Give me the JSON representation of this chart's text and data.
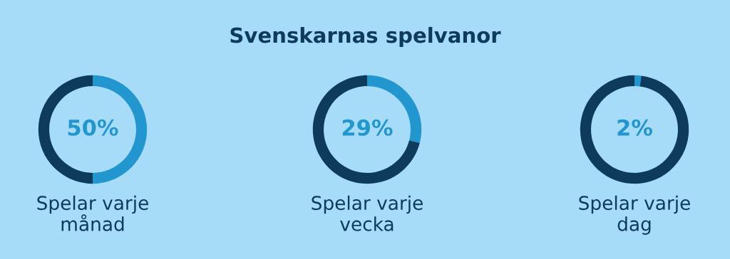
{
  "chart_data": [
    {
      "type": "other",
      "title": "Svenskarnas spelvanor"
    },
    {
      "type": "donut",
      "xlabel": "Spelar varje\nmånad",
      "categories": [
        null,
        null
      ],
      "values": [
        50,
        50
      ],
      "colors": [
        "#2196cf",
        "#0e3a5c"
      ],
      "value_labels": [
        "50%",
        null
      ]
    },
    {
      "type": "donut",
      "xlabel": "Spelar varje\nvecka",
      "categories": [
        null,
        null
      ],
      "values": [
        29,
        71
      ],
      "colors": [
        "#2196cf",
        "#0e3a5c"
      ],
      "value_labels": [
        "29%",
        null
      ]
    },
    {
      "type": "donut",
      "xlabel": "Spelar varje\ndag",
      "categories": [
        null,
        null
      ],
      "values": [
        2,
        98
      ],
      "colors": [
        "#2196cf",
        "#0e3a5c"
      ],
      "value_labels": [
        "2%",
        null
      ]
    }
  ]
}
